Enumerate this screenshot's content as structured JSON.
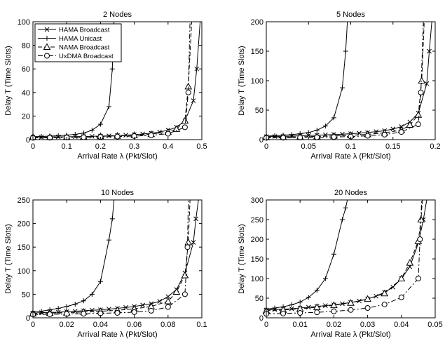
{
  "chart_data": [
    {
      "type": "line",
      "title": "2 Nodes",
      "xlabel": "Arrival Rate λ (Pkt/Slot)",
      "ylabel": "Delay T (Time Slots)",
      "xlim": [
        0,
        0.5
      ],
      "ylim": [
        0,
        100
      ],
      "xticks": [
        "0",
        "0.1",
        "0.2",
        "0.3",
        "0.4",
        "0.5"
      ],
      "yticks": [
        "0",
        "20",
        "40",
        "60",
        "80",
        "100"
      ],
      "legend": {
        "placement": "top-left",
        "entries": [
          "HAMA Broadcast",
          "HAMA Unicast",
          "NAMA Broadcast",
          "UxDMA Broadcast"
        ]
      },
      "series": [
        {
          "name": "HAMA Broadcast",
          "x": [
            0,
            0.025,
            0.05,
            0.075,
            0.1,
            0.125,
            0.15,
            0.175,
            0.2,
            0.225,
            0.25,
            0.275,
            0.3,
            0.325,
            0.35,
            0.375,
            0.4,
            0.425,
            0.45,
            0.475,
            0.485,
            0.495
          ],
          "values": [
            2,
            2.1,
            2.2,
            2.3,
            2.4,
            2.5,
            2.6,
            2.8,
            3,
            3.2,
            3.5,
            3.8,
            4.2,
            4.8,
            5.5,
            6.5,
            8,
            10.5,
            16,
            33,
            60,
            100
          ]
        },
        {
          "name": "HAMA Unicast",
          "x": [
            0,
            0.025,
            0.05,
            0.075,
            0.1,
            0.125,
            0.15,
            0.175,
            0.2,
            0.225,
            0.235,
            0.24
          ],
          "values": [
            2.5,
            2.7,
            3,
            3.3,
            3.8,
            4.5,
            5.5,
            8,
            13,
            28,
            60,
            100
          ]
        },
        {
          "name": "NAMA Broadcast",
          "x": [
            0,
            0.05,
            0.1,
            0.15,
            0.2,
            0.25,
            0.3,
            0.35,
            0.4,
            0.425,
            0.45,
            0.46,
            0.47
          ],
          "values": [
            2,
            2.1,
            2.3,
            2.5,
            2.8,
            3.2,
            3.8,
            4.6,
            6.5,
            9,
            16,
            45,
            100
          ]
        },
        {
          "name": "UxDMA Broadcast",
          "x": [
            0,
            0.05,
            0.1,
            0.15,
            0.2,
            0.25,
            0.3,
            0.35,
            0.4,
            0.45,
            0.46,
            0.465
          ],
          "values": [
            1.5,
            1.6,
            1.8,
            2,
            2.3,
            2.6,
            3,
            3.7,
            5,
            10.5,
            40,
            100
          ]
        }
      ]
    },
    {
      "type": "line",
      "title": "5 Nodes",
      "xlabel": "Arrival Rate λ (Pkt/Slot)",
      "ylabel": "Delay T (Time Slots)",
      "xlim": [
        0,
        0.2
      ],
      "ylim": [
        0,
        200
      ],
      "xticks": [
        "0",
        "0.05",
        "0.1",
        "0.15",
        "0.2"
      ],
      "yticks": [
        "0",
        "50",
        "100",
        "150",
        "200"
      ],
      "series": [
        {
          "name": "HAMA Broadcast",
          "x": [
            0,
            0.01,
            0.02,
            0.03,
            0.04,
            0.05,
            0.06,
            0.07,
            0.08,
            0.09,
            0.1,
            0.11,
            0.12,
            0.13,
            0.14,
            0.15,
            0.16,
            0.17,
            0.18,
            0.19,
            0.193,
            0.196
          ],
          "values": [
            5,
            5.3,
            5.6,
            6,
            6.5,
            7,
            7.5,
            8,
            8.6,
            9.3,
            10,
            11,
            12,
            13.5,
            15,
            18,
            22,
            30,
            45,
            95,
            150,
            200
          ]
        },
        {
          "name": "HAMA Unicast",
          "x": [
            0,
            0.01,
            0.02,
            0.03,
            0.04,
            0.05,
            0.06,
            0.07,
            0.08,
            0.09,
            0.094,
            0.096
          ],
          "values": [
            6,
            6.5,
            7.5,
            8.5,
            10,
            12,
            16,
            23,
            37,
            88,
            150,
            200
          ]
        },
        {
          "name": "NAMA Broadcast",
          "x": [
            0,
            0.02,
            0.04,
            0.06,
            0.08,
            0.1,
            0.12,
            0.14,
            0.16,
            0.17,
            0.18,
            0.184,
            0.187
          ],
          "values": [
            4,
            4.3,
            4.8,
            5.5,
            6.3,
            7.5,
            9,
            11.5,
            16,
            25,
            42,
            100,
            200
          ]
        },
        {
          "name": "UxDMA Broadcast",
          "x": [
            0,
            0.02,
            0.04,
            0.06,
            0.08,
            0.1,
            0.12,
            0.14,
            0.16,
            0.18,
            0.183,
            0.186
          ],
          "values": [
            3,
            3.2,
            3.5,
            4,
            4.5,
            5.2,
            6.5,
            8.5,
            13,
            26,
            80,
            200
          ]
        }
      ]
    },
    {
      "type": "line",
      "title": "10 Nodes",
      "xlabel": "Arrival Rate λ (Pkt/Slot)",
      "ylabel": "Delay T (Time Slots)",
      "xlim": [
        0,
        0.1
      ],
      "ylim": [
        0,
        250
      ],
      "xticks": [
        "0",
        "0.02",
        "0.04",
        "0.06",
        "0.08",
        "0.1"
      ],
      "yticks": [
        "0",
        "50",
        "100",
        "150",
        "200",
        "250"
      ],
      "series": [
        {
          "name": "HAMA Broadcast",
          "x": [
            0,
            0.005,
            0.01,
            0.015,
            0.02,
            0.025,
            0.03,
            0.035,
            0.04,
            0.045,
            0.05,
            0.055,
            0.06,
            0.065,
            0.07,
            0.075,
            0.08,
            0.085,
            0.09,
            0.095,
            0.0965,
            0.098
          ],
          "values": [
            10,
            11,
            11.5,
            12,
            13,
            14,
            15,
            16,
            17,
            18.5,
            20,
            22,
            24,
            27,
            30,
            35,
            45,
            60,
            95,
            160,
            210,
            250
          ]
        },
        {
          "name": "HAMA Unicast",
          "x": [
            0,
            0.005,
            0.01,
            0.015,
            0.02,
            0.025,
            0.03,
            0.035,
            0.04,
            0.045,
            0.047,
            0.048
          ],
          "values": [
            12,
            14,
            17,
            20,
            24,
            29,
            36,
            50,
            77,
            165,
            210,
            250
          ]
        },
        {
          "name": "NAMA Broadcast",
          "x": [
            0,
            0.01,
            0.02,
            0.03,
            0.04,
            0.05,
            0.06,
            0.07,
            0.08,
            0.085,
            0.09,
            0.092,
            0.093
          ],
          "values": [
            9,
            10,
            11,
            12.5,
            14,
            16,
            19,
            24,
            35,
            55,
            90,
            160,
            250
          ]
        },
        {
          "name": "UxDMA Broadcast",
          "x": [
            0,
            0.01,
            0.02,
            0.03,
            0.04,
            0.05,
            0.06,
            0.07,
            0.08,
            0.09,
            0.0915,
            0.092
          ],
          "values": [
            7,
            7.5,
            8,
            8.7,
            9.5,
            10.5,
            12,
            15,
            23,
            50,
            150,
            250
          ]
        }
      ]
    },
    {
      "type": "line",
      "title": "20 Nodes",
      "xlabel": "Arrival Rate λ (Pkt/Slot)",
      "ylabel": "Delay T (Time Slots)",
      "xlim": [
        0,
        0.05
      ],
      "ylim": [
        0,
        300
      ],
      "xticks": [
        "0",
        "0.01",
        "0.02",
        "0.03",
        "0.04",
        "0.05"
      ],
      "yticks": [
        "0",
        "50",
        "100",
        "150",
        "200",
        "250",
        "300"
      ],
      "series": [
        {
          "name": "HAMA Broadcast",
          "x": [
            0,
            0.0025,
            0.005,
            0.0075,
            0.01,
            0.0125,
            0.015,
            0.0175,
            0.02,
            0.0225,
            0.025,
            0.0275,
            0.03,
            0.0325,
            0.035,
            0.0375,
            0.04,
            0.0425,
            0.045,
            0.0465,
            0.0475
          ],
          "values": [
            20,
            21,
            22,
            23,
            25,
            27,
            29,
            31,
            33,
            36,
            39,
            43,
            48,
            55,
            65,
            78,
            100,
            130,
            190,
            250,
            300
          ]
        },
        {
          "name": "HAMA Unicast",
          "x": [
            0,
            0.0025,
            0.005,
            0.0075,
            0.01,
            0.0125,
            0.015,
            0.0175,
            0.02,
            0.0225,
            0.0235,
            0.024
          ],
          "values": [
            22,
            25,
            28,
            33,
            40,
            52,
            70,
            100,
            162,
            250,
            280,
            300
          ]
        },
        {
          "name": "NAMA Broadcast",
          "x": [
            0,
            0.005,
            0.01,
            0.015,
            0.02,
            0.025,
            0.03,
            0.035,
            0.04,
            0.0425,
            0.045,
            0.0458,
            0.0462
          ],
          "values": [
            18,
            20,
            23,
            27,
            32,
            38,
            48,
            62,
            100,
            140,
            195,
            250,
            300
          ]
        },
        {
          "name": "UxDMA Broadcast",
          "x": [
            0,
            0.005,
            0.01,
            0.015,
            0.02,
            0.025,
            0.03,
            0.035,
            0.04,
            0.045,
            0.0455,
            0.046
          ],
          "values": [
            10,
            11,
            12.5,
            14,
            16.5,
            20,
            25,
            34,
            52,
            100,
            200,
            300
          ]
        }
      ]
    }
  ]
}
